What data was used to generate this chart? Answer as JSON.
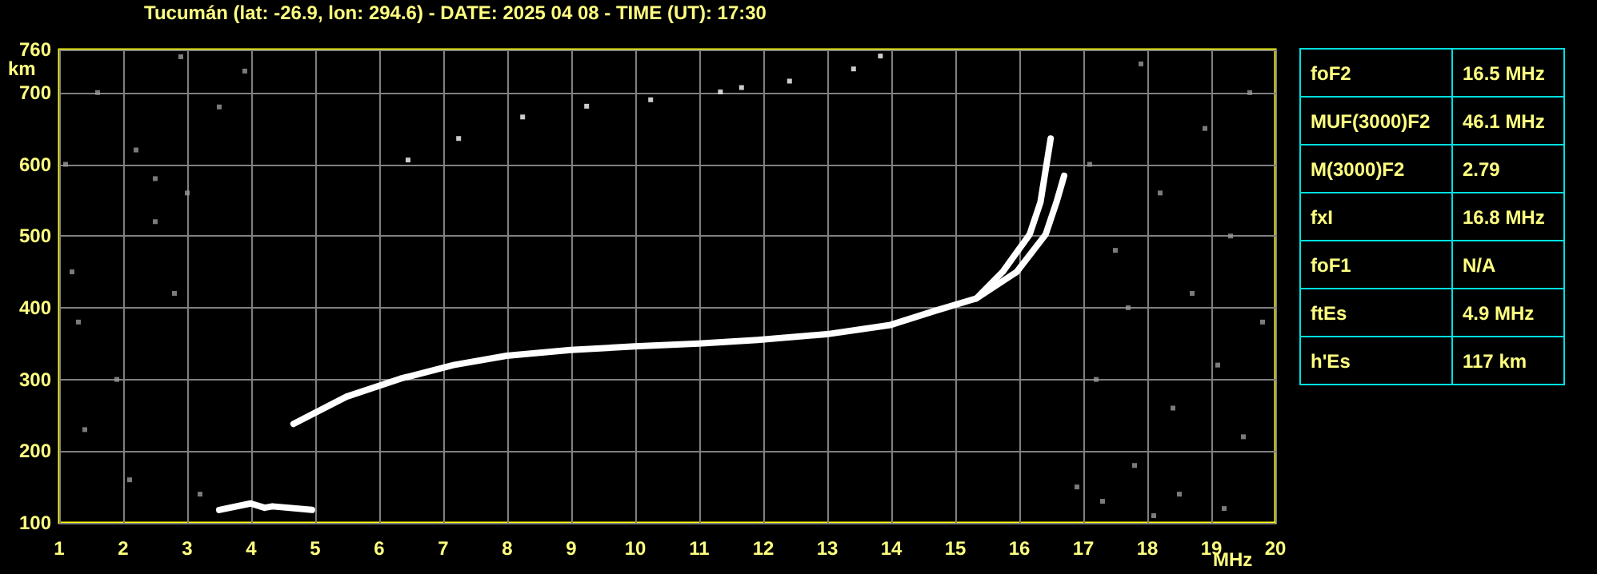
{
  "chart_data": [
    {
      "type": "line",
      "title": "Tucumán (lat: -26.9, lon: 294.6) - DATE: 2025 04 08 - TIME (UT): 17:30",
      "xlabel": "MHz",
      "ylabel": "km",
      "xlim": [
        1,
        20
      ],
      "xticks": [
        1,
        2,
        3,
        4,
        5,
        6,
        7,
        8,
        9,
        10,
        11,
        12,
        13,
        14,
        15,
        16,
        17,
        18,
        19,
        20
      ],
      "ylim": [
        100,
        760
      ],
      "yticks": [
        100,
        200,
        300,
        400,
        500,
        600,
        700,
        760
      ],
      "grid": true,
      "series": [
        {
          "color": "#ffffff",
          "x": [
            4.66,
            5.49,
            6.33,
            7.16,
            7.99,
            8.99,
            9.99,
            10.99,
            11.91,
            12.99,
            13.99,
            14.66,
            15.33,
            15.74,
            16.16,
            16.33,
            16.49
          ],
          "values": [
            238,
            276,
            301,
            320,
            333,
            341,
            346,
            350,
            355,
            363,
            376,
            395,
            413,
            450,
            502,
            547,
            636
          ]
        },
        {
          "color": "#ffffff",
          "x": [
            15.33,
            15.96,
            16.41,
            16.58,
            16.7
          ],
          "values": [
            413,
            450,
            502,
            547,
            584
          ]
        },
        {
          "color": "#ffffff",
          "x": [
            3.5,
            3.99,
            4.21,
            4.33,
            4.95
          ],
          "values": [
            118,
            127,
            121,
            123,
            118
          ]
        },
        {
          "type": "scatter",
          "marker": "square",
          "color": "#ffffff",
          "x": [
            6.45,
            7.24,
            8.24,
            9.24,
            10.24,
            11.33,
            11.66,
            12.41,
            13.41,
            13.83
          ],
          "values": [
            606,
            636,
            666,
            681,
            690,
            701,
            707,
            716,
            733,
            751
          ]
        },
        {
          "type": "scatter",
          "marker": "square",
          "color": "#9a9a9a",
          "x": [
            1.1,
            1.2,
            1.4,
            1.6,
            2.2,
            2.5,
            2.5,
            2.9,
            3.0,
            3.5,
            3.9,
            1.9,
            2.1,
            3.2,
            2.8,
            1.3,
            17.1,
            17.2,
            17.5,
            17.8,
            17.9,
            18.2,
            18.4,
            18.7,
            18.9,
            19.1,
            19.3,
            19.5,
            19.6,
            19.8,
            17.3,
            18.1,
            19.2,
            16.9,
            17.7,
            18.5
          ],
          "values": [
            600,
            450,
            230,
            700,
            620,
            520,
            580,
            750,
            560,
            680,
            730,
            300,
            160,
            140,
            420,
            380,
            600,
            300,
            480,
            180,
            740,
            560,
            260,
            420,
            650,
            320,
            500,
            220,
            700,
            380,
            130,
            110,
            120,
            150,
            400,
            140
          ]
        }
      ]
    },
    {
      "type": "other",
      "annotations": [
        "foF2",
        "16.5 MHz",
        "MUF(3000)F2",
        "46.1 MHz",
        "M(3000)F2",
        "2.79",
        "fxI",
        "16.8 MHz",
        "foF1",
        "N/A",
        "ftEs",
        "4.9 MHz",
        "h'Es",
        "117 km"
      ]
    }
  ]
}
